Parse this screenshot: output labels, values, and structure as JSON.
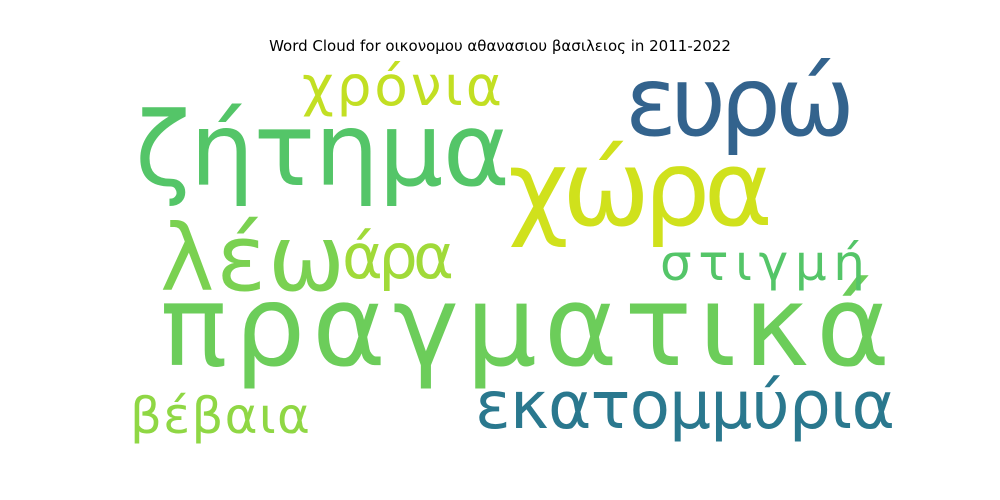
{
  "title": "Word Cloud for οικονομου αθανασιου βασιλειος in 2011-2022",
  "words": [
    {
      "text": "πραγματικά",
      "color": "#6ccd5a",
      "rank": 1
    },
    {
      "text": "χώρα",
      "color": "#d0e11c",
      "rank": 2
    },
    {
      "text": "ζήτημα",
      "color": "#54c568",
      "rank": 3
    },
    {
      "text": "ευρώ",
      "color": "#33638d",
      "rank": 4
    },
    {
      "text": "λέω",
      "color": "#7ad151",
      "rank": 5
    },
    {
      "text": "εκατομμύρια",
      "color": "#2a788e",
      "rank": 6
    },
    {
      "text": "χρόνια",
      "color": "#c2df23",
      "rank": 7
    },
    {
      "text": "άρα",
      "color": "#a0da39",
      "rank": 8
    },
    {
      "text": "στιγμή",
      "color": "#54c568",
      "rank": 9
    },
    {
      "text": "βέβαια",
      "color": "#8fd744",
      "rank": 10
    }
  ]
}
